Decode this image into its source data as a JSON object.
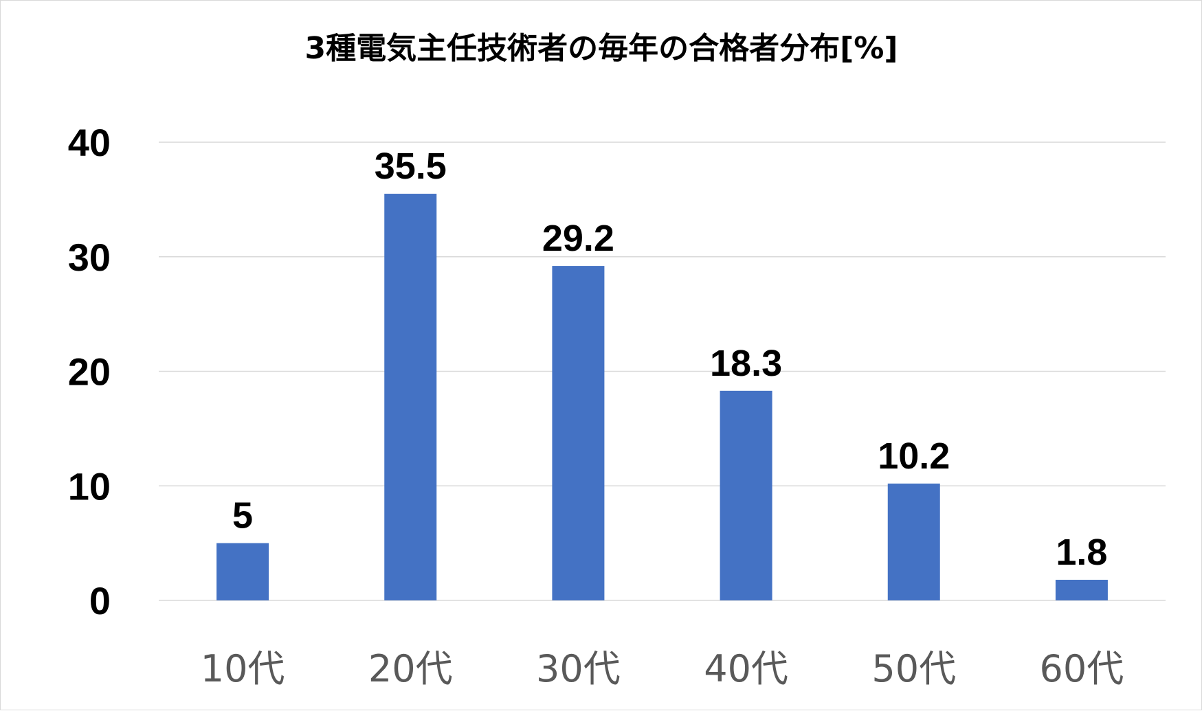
{
  "chart_data": {
    "type": "bar",
    "title": "3種電気主任技術者の毎年の合格者分布[%]",
    "categories": [
      "10代",
      "20代",
      "30代",
      "40代",
      "50代",
      "60代"
    ],
    "values": [
      5,
      35.5,
      29.2,
      18.3,
      10.2,
      1.8
    ],
    "data_labels": [
      "5",
      "35.5",
      "29.2",
      "18.3",
      "10.2",
      "1.8"
    ],
    "y_ticks": [
      "0",
      "10",
      "20",
      "30",
      "40"
    ],
    "ylim": [
      0,
      40
    ],
    "xlabel": "",
    "ylabel": "",
    "grid": true,
    "legend": "none",
    "bar_color": "#4472C4"
  }
}
